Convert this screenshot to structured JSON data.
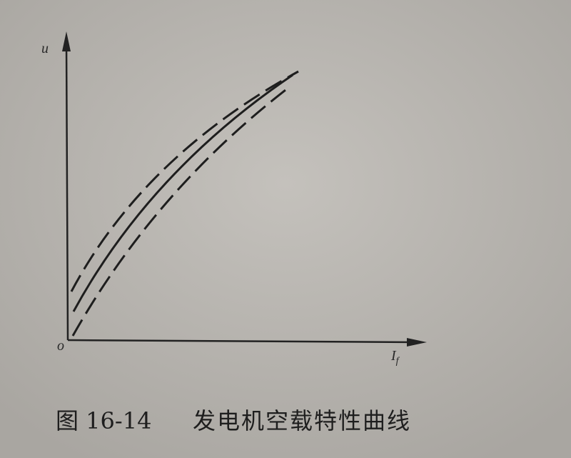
{
  "figure": {
    "y_label": "u",
    "origin": "o",
    "x_label": "I",
    "x_label_sub": "f",
    "caption_number": "图 16-14",
    "caption_title": "发电机空载特性曲线"
  }
}
